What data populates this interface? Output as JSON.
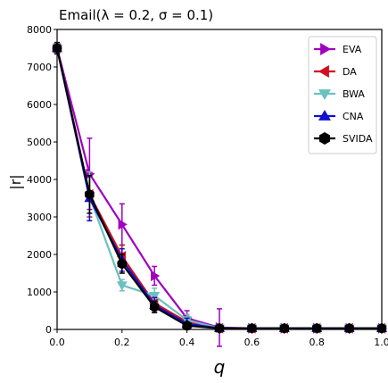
{
  "chart_data": {
    "type": "line",
    "title": "Email(λ = 0.2, σ = 0.1)",
    "xlabel": "q",
    "ylabel": "|r|",
    "xlim": [
      0.0,
      1.0
    ],
    "ylim": [
      0,
      8000
    ],
    "xticks": [
      "0.0",
      "0.2",
      "0.4",
      "0.6",
      "0.8",
      "1.0"
    ],
    "yticks": [
      "0",
      "1000",
      "2000",
      "3000",
      "4000",
      "5000",
      "6000",
      "7000",
      "8000"
    ],
    "grid": false,
    "legend_position": "upper right",
    "x": [
      0.0,
      0.1,
      0.2,
      0.3,
      0.4,
      0.5,
      0.6,
      0.7,
      0.8,
      0.9,
      1.0
    ],
    "series": [
      {
        "name": "EVA",
        "color": "#a000c0",
        "marker": "triangle-right",
        "values": [
          7500,
          4150,
          2800,
          1430,
          300,
          50,
          30,
          30,
          30,
          30,
          30
        ],
        "errors": [
          150,
          950,
          550,
          250,
          200,
          500,
          40,
          40,
          40,
          40,
          40
        ]
      },
      {
        "name": "DA",
        "color": "#d01020",
        "marker": "triangle-left",
        "values": [
          7500,
          3600,
          1950,
          700,
          200,
          30,
          30,
          30,
          30,
          30,
          30
        ],
        "errors": [
          150,
          600,
          300,
          200,
          150,
          40,
          40,
          40,
          40,
          40,
          40
        ]
      },
      {
        "name": "BWA",
        "color": "#6cc0c0",
        "marker": "triangle-down",
        "values": [
          7500,
          3550,
          1180,
          900,
          250,
          30,
          30,
          30,
          30,
          30,
          30
        ],
        "errors": [
          150,
          650,
          150,
          200,
          150,
          40,
          40,
          40,
          40,
          40,
          40
        ]
      },
      {
        "name": "CNA",
        "color": "#1010d0",
        "marker": "triangle-up",
        "values": [
          7500,
          3500,
          1850,
          650,
          150,
          30,
          30,
          30,
          30,
          30,
          30
        ],
        "errors": [
          150,
          600,
          300,
          200,
          150,
          40,
          40,
          40,
          40,
          40,
          40
        ]
      },
      {
        "name": "SVIDA",
        "color": "#000000",
        "marker": "hexagon",
        "values": [
          7500,
          3600,
          1750,
          600,
          100,
          30,
          30,
          30,
          30,
          30,
          30
        ],
        "errors": [
          150,
          500,
          250,
          150,
          100,
          40,
          40,
          40,
          40,
          40,
          40
        ]
      }
    ]
  }
}
